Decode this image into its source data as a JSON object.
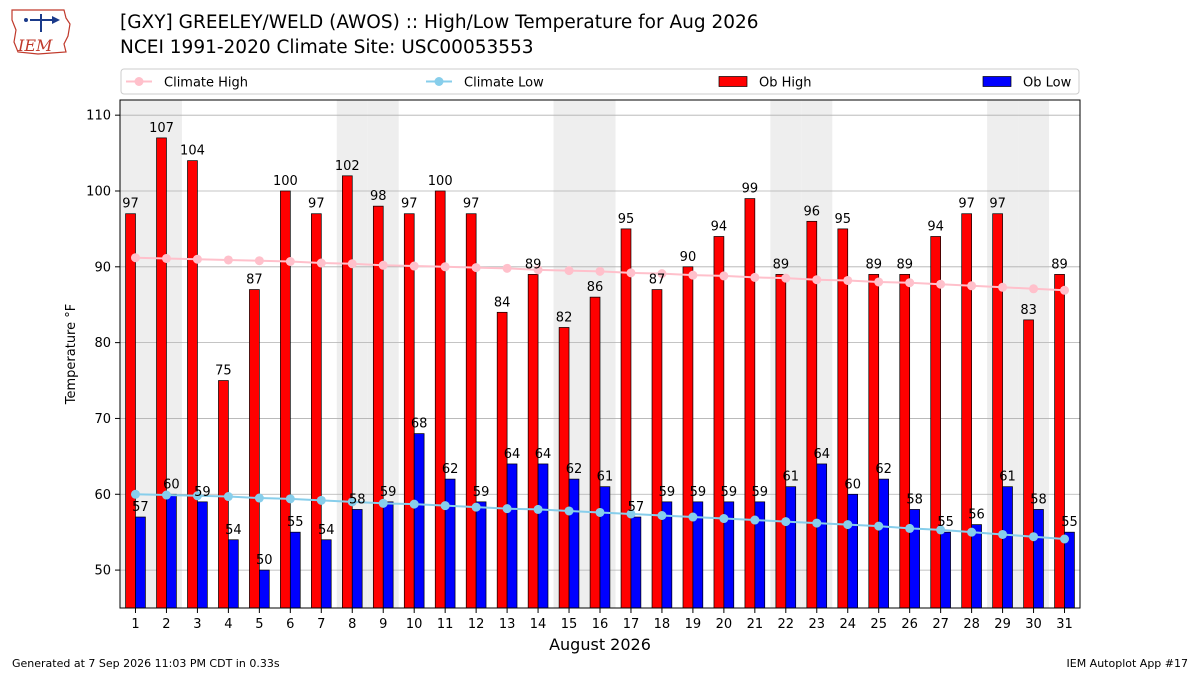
{
  "header": {
    "title": "[GXY] GREELEY/WELD (AWOS) :: High/Low Temperature for Aug 2026",
    "subtitle": "NCEI 1991-2020 Climate Site: USC00053553",
    "logo_text": "IEM"
  },
  "footer": {
    "generated": "Generated at 7 Sep 2026 11:03 PM CDT in 0.33s",
    "app": "IEM Autoplot App #17"
  },
  "colors": {
    "ob_high": "#ff0000",
    "ob_low": "#0000ff",
    "climate_high": "#ffc0cb",
    "climate_low": "#87ceeb",
    "weekend_band": "#eeeeee",
    "grid": "#b0b0b0"
  },
  "chart_data": {
    "type": "bar",
    "xlabel": "August 2026",
    "ylabel": "Temperature °F",
    "ylim": [
      45,
      112
    ],
    "yticks": [
      50,
      60,
      70,
      80,
      90,
      100,
      110
    ],
    "grid": "horizontal",
    "legend_position": "top",
    "categories": [
      1,
      2,
      3,
      4,
      5,
      6,
      7,
      8,
      9,
      10,
      11,
      12,
      13,
      14,
      15,
      16,
      17,
      18,
      19,
      20,
      21,
      22,
      23,
      24,
      25,
      26,
      27,
      28,
      29,
      30,
      31
    ],
    "shaded_days": [
      1,
      2,
      8,
      9,
      15,
      16,
      22,
      23,
      29,
      30
    ],
    "series": [
      {
        "name": "Climate High",
        "kind": "line",
        "values": [
          91.2,
          91.1,
          91.0,
          90.9,
          90.8,
          90.7,
          90.5,
          90.4,
          90.2,
          90.1,
          90.0,
          89.9,
          89.8,
          89.6,
          89.5,
          89.4,
          89.2,
          89.1,
          88.9,
          88.8,
          88.6,
          88.5,
          88.3,
          88.2,
          88.0,
          87.9,
          87.7,
          87.5,
          87.3,
          87.1,
          86.9
        ]
      },
      {
        "name": "Climate Low",
        "kind": "line",
        "values": [
          60.0,
          59.9,
          59.8,
          59.7,
          59.5,
          59.4,
          59.2,
          59.0,
          58.8,
          58.7,
          58.5,
          58.3,
          58.1,
          58.0,
          57.8,
          57.6,
          57.4,
          57.2,
          57.0,
          56.8,
          56.6,
          56.4,
          56.2,
          56.0,
          55.8,
          55.5,
          55.3,
          55.0,
          54.7,
          54.4,
          54.1
        ]
      },
      {
        "name": "Ob High",
        "kind": "bar",
        "values": [
          97,
          107,
          104,
          75,
          87,
          100,
          97,
          102,
          98,
          97,
          100,
          97,
          84,
          89,
          82,
          86,
          95,
          87,
          90,
          94,
          99,
          89,
          96,
          95,
          89,
          89,
          94,
          97,
          97,
          83,
          89
        ]
      },
      {
        "name": "Ob Low",
        "kind": "bar",
        "values": [
          57,
          60,
          59,
          54,
          50,
          55,
          54,
          58,
          59,
          68,
          62,
          59,
          64,
          64,
          62,
          61,
          57,
          59,
          59,
          59,
          59,
          61,
          64,
          60,
          62,
          58,
          55,
          56,
          61,
          58,
          55
        ]
      }
    ]
  }
}
